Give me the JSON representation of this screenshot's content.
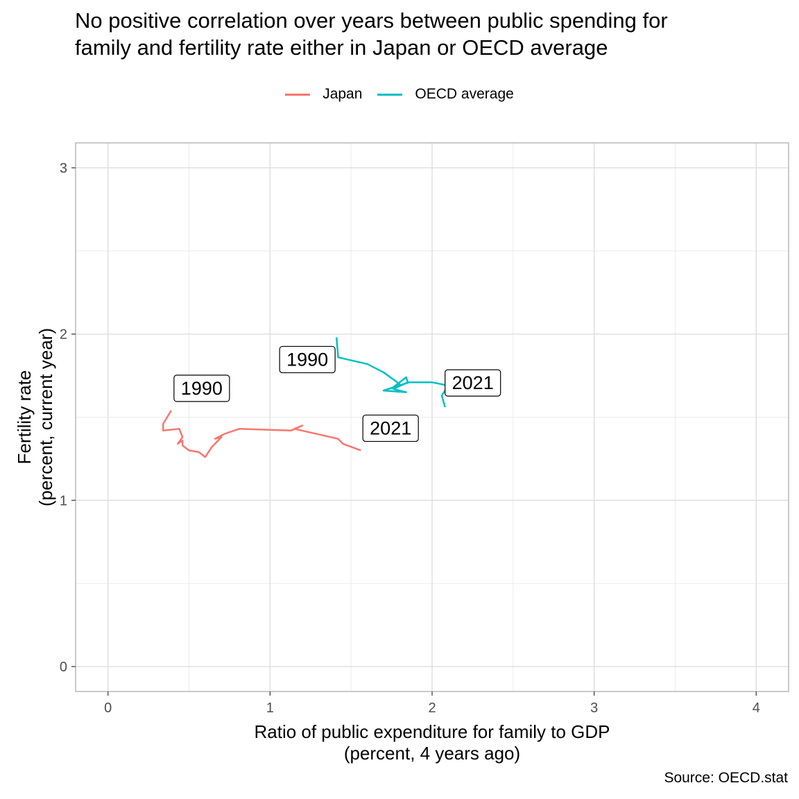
{
  "title": "No positive correlation over years between public spending for\nfamily and fertility rate either in Japan or OECD average",
  "caption": "Source: OECD.stat",
  "legend": {
    "items": [
      {
        "label": "Japan",
        "color": "#F8766D"
      },
      {
        "label": "OECD average",
        "color": "#00BFC4"
      }
    ]
  },
  "chart_data": {
    "type": "line",
    "xlabel": "Ratio of public expenditure for family to GDP\n(percent, 4 years ago)",
    "ylabel": "Fertility rate\n(percent, current year)",
    "xlim": [
      -0.2,
      4.2
    ],
    "ylim": [
      -0.15,
      3.15
    ],
    "xticks": [
      0,
      1,
      2,
      3,
      4
    ],
    "yticks": [
      0,
      1,
      2,
      3
    ],
    "grid": true,
    "legend_position": "top",
    "series": [
      {
        "name": "Japan",
        "color": "#F8766D",
        "x": [
          0.39,
          0.34,
          0.34,
          0.44,
          0.46,
          0.43,
          0.46,
          0.46,
          0.5,
          0.56,
          0.6,
          0.64,
          0.7,
          0.66,
          0.72,
          0.81,
          1.13,
          1.2,
          1.15,
          1.42,
          1.45,
          1.56
        ],
        "y": [
          1.54,
          1.46,
          1.42,
          1.43,
          1.38,
          1.34,
          1.36,
          1.33,
          1.3,
          1.29,
          1.26,
          1.32,
          1.38,
          1.37,
          1.4,
          1.43,
          1.42,
          1.45,
          1.43,
          1.37,
          1.34,
          1.3
        ],
        "start_label": "1990",
        "end_label": "2021"
      },
      {
        "name": "OECD average",
        "color": "#00BFC4",
        "x": [
          1.41,
          1.42,
          1.6,
          1.7,
          1.8,
          1.76,
          1.84,
          1.85,
          1.76,
          1.84,
          1.7,
          1.86,
          2.0,
          2.1,
          2.08,
          2.06,
          2.08
        ],
        "y": [
          1.98,
          1.86,
          1.82,
          1.77,
          1.7,
          1.68,
          1.74,
          1.71,
          1.67,
          1.65,
          1.66,
          1.71,
          1.71,
          1.69,
          1.66,
          1.63,
          1.56
        ],
        "start_label": "1990",
        "end_label": "2021"
      }
    ]
  }
}
